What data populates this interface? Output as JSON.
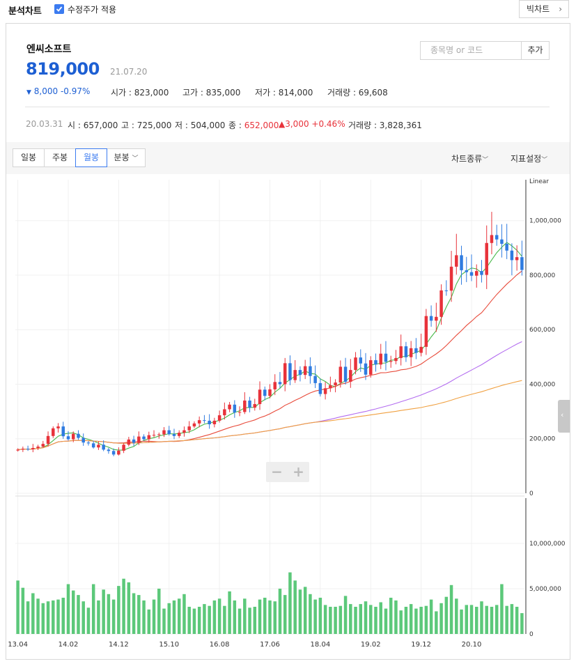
{
  "header": {
    "title": "분석차트",
    "adjusted_label": "수정주가 적용",
    "adjusted_checked": true,
    "big_chart_label": "빅차트"
  },
  "stock": {
    "name": "엔씨소프트",
    "price": "819,000",
    "date": "21.07.20",
    "change": "8,000",
    "change_pct": "-0.97%",
    "open_label": "시가",
    "open": "823,000",
    "high_label": "고가",
    "high": "835,000",
    "low_label": "저가",
    "low": "814,000",
    "volume_label": "거래량",
    "volume": "69,608"
  },
  "search": {
    "placeholder": "종목명 or 코드",
    "add_label": "추가"
  },
  "ohlc_row": {
    "date": "20.03.31",
    "open_label": "시",
    "open": "657,000",
    "high_label": "고",
    "high": "725,000",
    "low_label": "저",
    "low": "504,000",
    "close_label": "종",
    "close": "652,000",
    "change": "3,000",
    "change_pct": "+0.46%",
    "volume_label": "거래량",
    "volume": "3,828,361"
  },
  "toolbar": {
    "tabs": [
      "일봉",
      "주봉",
      "월봉",
      "분봉"
    ],
    "active_tab": "월봉",
    "chart_type_label": "차트종류",
    "indicator_label": "지표설정"
  },
  "colors": {
    "up": "#e8323a",
    "down": "#2f7be0",
    "volume": "#5cc87a",
    "ma5": "#48b848",
    "ma20": "#e84a3a",
    "ma60": "#b36cf0",
    "ma120": "#f0a040",
    "accent": "#1d5fd3"
  },
  "chart_data": {
    "type": "candlestick",
    "scale_label": "Linear",
    "price_ylim": [
      0,
      1150000
    ],
    "price_ticks": [
      "0",
      "200,000",
      "400,000",
      "600,000",
      "800,000",
      "1,000,000"
    ],
    "price_tick_values": [
      0,
      200000,
      400000,
      600000,
      800000,
      1000000
    ],
    "volume_ylim": [
      0,
      15000000
    ],
    "volume_ticks": [
      "0",
      "5,000,000",
      "10,000,000"
    ],
    "volume_tick_values": [
      0,
      5000000,
      10000000
    ],
    "x_labels": [
      "13.04",
      "14.02",
      "14.12",
      "15.10",
      "16.08",
      "17.06",
      "18.04",
      "19.02",
      "19.12",
      "20.10"
    ],
    "x_label_index": [
      0,
      10,
      20,
      30,
      40,
      50,
      60,
      70,
      80,
      90
    ],
    "closes": [
      160000,
      163000,
      161000,
      166000,
      171000,
      181000,
      210000,
      238000,
      245000,
      209000,
      198000,
      218000,
      203000,
      186000,
      183000,
      168000,
      178000,
      160000,
      155000,
      142000,
      156000,
      178000,
      197000,
      185000,
      208000,
      198000,
      213000,
      214000,
      216000,
      231000,
      217000,
      210000,
      222000,
      231000,
      245000,
      256000,
      268000,
      266000,
      253000,
      266000,
      286000,
      308000,
      325000,
      296000,
      298000,
      340000,
      314000,
      327000,
      380000,
      357000,
      381000,
      408000,
      400000,
      477000,
      415000,
      452000,
      434000,
      466000,
      430000,
      404000,
      364000,
      385000,
      396000,
      406000,
      464000,
      409000,
      452000,
      498000,
      476000,
      435000,
      488000,
      472000,
      512000,
      482000,
      485000,
      496000,
      539000,
      499000,
      532000,
      515000,
      537000,
      650000,
      633000,
      647000,
      744000,
      743000,
      831000,
      873000,
      818000,
      811000,
      798000,
      815000,
      801000,
      918000,
      947000,
      931000,
      915000,
      890000,
      855000,
      866000,
      819000
    ],
    "volumes": [
      5.9,
      5.1,
      3.6,
      4.5,
      3.9,
      3.4,
      3.6,
      3.7,
      3.8,
      4.0,
      5.5,
      4.8,
      4.3,
      3.6,
      2.9,
      5.5,
      3.7,
      4.9,
      4.4,
      3.8,
      5.3,
      6.1,
      5.7,
      4.5,
      4.3,
      3.7,
      2.7,
      3.8,
      5.0,
      2.8,
      3.4,
      3.7,
      3.9,
      4.4,
      3.0,
      2.8,
      3.0,
      3.3,
      3.1,
      3.7,
      3.9,
      3.1,
      4.7,
      3.7,
      2.8,
      3.9,
      2.9,
      3.0,
      3.8,
      4.0,
      3.7,
      3.6,
      5.0,
      4.3,
      6.8,
      5.9,
      4.9,
      5.2,
      4.4,
      3.8,
      4.0,
      3.2,
      3.0,
      3.0,
      3.1,
      4.2,
      3.3,
      3.0,
      3.3,
      3.6,
      3.2,
      3.0,
      3.5,
      2.8,
      4.0,
      3.7,
      2.6,
      3.0,
      3.3,
      2.8,
      3.0,
      3.1,
      3.8,
      2.5,
      3.4,
      4.1,
      5.4,
      3.9,
      2.7,
      3.2,
      3.2,
      3.0,
      3.6,
      3.1,
      3.0,
      3.2,
      5.5,
      3.1,
      3.3,
      3.0,
      2.3
    ]
  }
}
